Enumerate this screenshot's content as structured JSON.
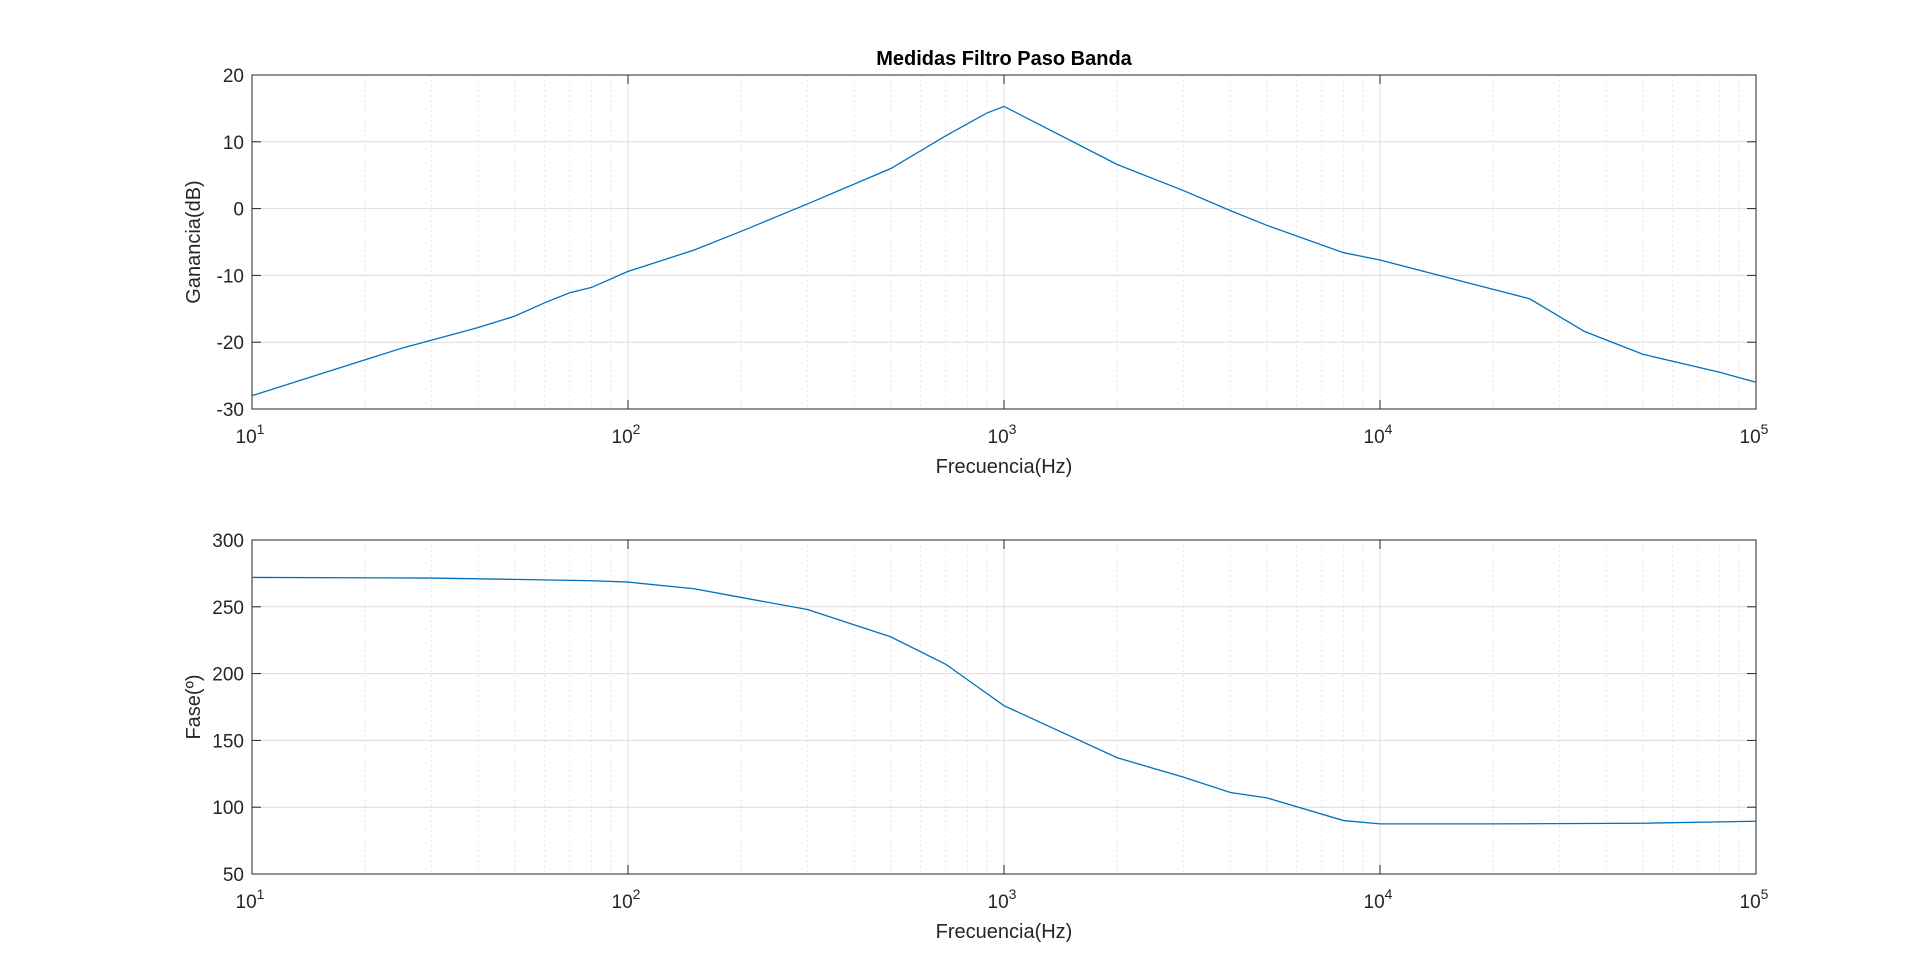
{
  "chart_data": [
    {
      "type": "line",
      "title": "Medidas Filtro Paso Banda",
      "xlabel": "Frecuencia(Hz)",
      "ylabel": "Ganancia(dB)",
      "xscale": "log",
      "xlim": [
        10,
        100000
      ],
      "ylim": [
        -30,
        20
      ],
      "grid": true,
      "x_ticks": [
        {
          "base": "10",
          "exp": "1"
        },
        {
          "base": "10",
          "exp": "2"
        },
        {
          "base": "10",
          "exp": "3"
        },
        {
          "base": "10",
          "exp": "4"
        },
        {
          "base": "10",
          "exp": "5"
        }
      ],
      "y_ticks": [
        "-30",
        "-20",
        "-10",
        "0",
        "10",
        "20"
      ],
      "color": "#0072bd",
      "series": [
        {
          "x": [
            10,
            25,
            40,
            50,
            60,
            70,
            80,
            100,
            150,
            200,
            300,
            500,
            700,
            900,
            1000,
            2000,
            3000,
            4000,
            5000,
            8000,
            10000,
            20000,
            25000,
            35000,
            50000,
            80000,
            100000
          ],
          "y": [
            -28,
            -20.9,
            -17.8,
            -16.1,
            -14.1,
            -12.6,
            -11.8,
            -9.4,
            -6.2,
            -3.4,
            0.7,
            6,
            10.9,
            14.3,
            15.3,
            6.6,
            2.7,
            -0.3,
            -2.5,
            -6.6,
            -7.7,
            -12.1,
            -13.5,
            -18.4,
            -21.8,
            -24.5,
            -26
          ]
        }
      ]
    },
    {
      "type": "line",
      "xlabel": "Frecuencia(Hz)",
      "ylabel": "Fase(º)",
      "xscale": "log",
      "xlim": [
        10,
        100000
      ],
      "ylim": [
        50,
        300
      ],
      "grid": true,
      "x_ticks": [
        {
          "base": "10",
          "exp": "1"
        },
        {
          "base": "10",
          "exp": "2"
        },
        {
          "base": "10",
          "exp": "3"
        },
        {
          "base": "10",
          "exp": "4"
        },
        {
          "base": "10",
          "exp": "5"
        }
      ],
      "y_ticks": [
        "50",
        "100",
        "150",
        "200",
        "250",
        "300"
      ],
      "color": "#0072bd",
      "series": [
        {
          "x": [
            10,
            30,
            50,
            80,
            100,
            150,
            200,
            300,
            500,
            700,
            1000,
            2000,
            3000,
            4000,
            5000,
            8000,
            10000,
            20000,
            50000,
            100000
          ],
          "y": [
            272,
            271.5,
            270.5,
            269.5,
            268.5,
            263.5,
            257,
            248,
            227.5,
            207,
            176,
            137,
            122.5,
            111,
            107,
            90,
            87.5,
            87.5,
            88,
            89.5
          ]
        }
      ]
    }
  ]
}
